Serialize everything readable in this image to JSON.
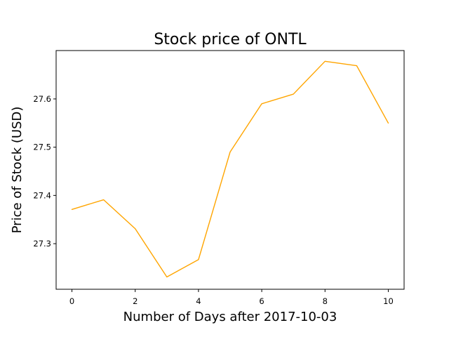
{
  "chart_data": {
    "type": "line",
    "title": "Stock price of ONTL",
    "xlabel": "Number of Days after 2017-10-03",
    "ylabel": "Price of Stock (USD)",
    "x": [
      0,
      1,
      2,
      3,
      4,
      5,
      6,
      7,
      8,
      9,
      10
    ],
    "series": [
      {
        "values": [
          27.371,
          27.391,
          27.331,
          27.231,
          27.267,
          27.49,
          27.59,
          27.61,
          27.678,
          27.669,
          27.55
        ],
        "color": "#FFA500"
      }
    ],
    "xlim": [
      -0.5,
      10.5
    ],
    "ylim": [
      27.2055,
      27.7003
    ],
    "xticks": [
      0,
      2,
      4,
      6,
      8,
      10
    ],
    "xtick_labels": [
      "0",
      "2",
      "4",
      "6",
      "8",
      "10"
    ],
    "yticks": [
      27.3,
      27.4,
      27.5,
      27.6
    ],
    "ytick_labels": [
      "27.3",
      "27.4",
      "27.5",
      "27.6"
    ],
    "grid": false,
    "legend": "none"
  }
}
